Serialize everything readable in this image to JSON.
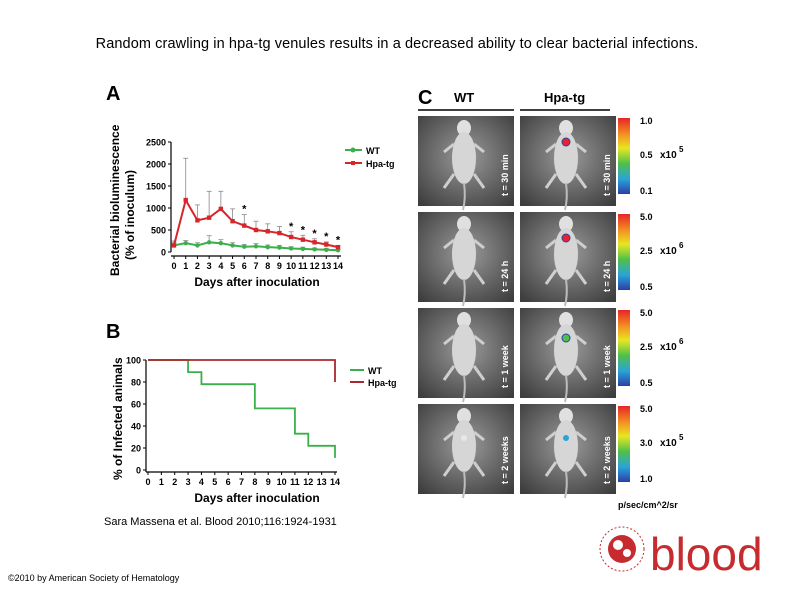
{
  "title": "Random crawling in hpa-tg venules results in a decreased ability to clear bacterial infections.",
  "citation": "Sara Massena et al. Blood 2010;116:1924-1931",
  "copyright": "©2010 by American Society of Hematology",
  "logo_text": "blood",
  "colors": {
    "wt": "#3bb04a",
    "hpa": "#d7262b",
    "hpa_dark": "#a8282b"
  },
  "panelA": {
    "label": "A",
    "ylabel_line1": "Bacterial bioluminescence",
    "ylabel_line2": "(% of inoculum)",
    "xlabel": "Days after inoculation",
    "legend": [
      "WT",
      "Hpa-tg"
    ],
    "yticks": [
      "2500",
      "2000",
      "1500",
      "1000",
      "500",
      "0"
    ],
    "xticks": [
      "0",
      "1",
      "2",
      "3",
      "4",
      "5",
      "6",
      "7",
      "8",
      "9",
      "10",
      "11",
      "12",
      "13",
      "14"
    ],
    "significance": "*"
  },
  "panelB": {
    "label": "B",
    "ylabel": "% of Infected animals",
    "xlabel": "Days after inoculation",
    "legend": [
      "WT",
      "Hpa-tg"
    ],
    "yticks": [
      "100",
      "80",
      "60",
      "40",
      "20",
      "0"
    ],
    "xticks": [
      "0",
      "1",
      "2",
      "3",
      "4",
      "5",
      "6",
      "7",
      "8",
      "9",
      "10",
      "11",
      "12",
      "13",
      "14"
    ]
  },
  "panelC": {
    "label": "C",
    "col_headers": [
      "WT",
      "Hpa-tg"
    ],
    "rows": [
      {
        "time": "t = 30 min",
        "scale_top": "1.0",
        "scale_mid": "0.5",
        "scale_bot": "0.1",
        "multiplier": "x10",
        "exp": "5"
      },
      {
        "time": "t = 24 h",
        "scale_top": "5.0",
        "scale_mid": "2.5",
        "scale_bot": "0.5",
        "multiplier": "x10",
        "exp": "6"
      },
      {
        "time": "t = 1 week",
        "scale_top": "5.0",
        "scale_mid": "2.5",
        "scale_bot": "0.5",
        "multiplier": "x10",
        "exp": "6"
      },
      {
        "time": "t = 2 weeks",
        "scale_top": "5.0",
        "scale_mid": "3.0",
        "scale_bot": "1.0",
        "multiplier": "x10",
        "exp": "5"
      }
    ],
    "units": "p/sec/cm^2/sr"
  },
  "chart_data": [
    {
      "type": "line",
      "ylabel": "Bacterial bioluminescence (% of inoculum)",
      "xlabel": "Days after inoculation",
      "x": [
        0,
        1,
        2,
        3,
        4,
        5,
        6,
        7,
        8,
        9,
        10,
        11,
        12,
        13,
        14
      ],
      "ylim": [
        0,
        2500
      ],
      "series": [
        {
          "name": "WT",
          "values": [
            150,
            200,
            150,
            220,
            200,
            150,
            120,
            130,
            110,
            100,
            80,
            70,
            60,
            50,
            40
          ],
          "error": [
            60,
            60,
            60,
            150,
            80,
            60,
            50,
            60,
            50,
            50,
            40,
            40,
            30,
            30,
            20
          ]
        },
        {
          "name": "Hpa-tg",
          "values": [
            150,
            1180,
            720,
            780,
            980,
            700,
            600,
            500,
            470,
            430,
            340,
            280,
            220,
            170,
            110
          ],
          "error": [
            100,
            950,
            350,
            600,
            400,
            280,
            250,
            200,
            170,
            150,
            120,
            100,
            80,
            60,
            40
          ]
        }
      ],
      "significant_days": [
        6,
        10,
        11,
        12,
        13,
        14
      ]
    },
    {
      "type": "line",
      "ylabel": "% of Infected animals",
      "xlabel": "Days after inoculation",
      "x": [
        0,
        1,
        2,
        3,
        4,
        5,
        6,
        7,
        8,
        9,
        10,
        11,
        12,
        13,
        14
      ],
      "ylim": [
        0,
        100
      ],
      "step": true,
      "series": [
        {
          "name": "WT",
          "points": [
            [
              0,
              100
            ],
            [
              3,
              100
            ],
            [
              3,
              89
            ],
            [
              4,
              89
            ],
            [
              4,
              78
            ],
            [
              8,
              78
            ],
            [
              8,
              56
            ],
            [
              11,
              56
            ],
            [
              11,
              33
            ],
            [
              12,
              33
            ],
            [
              12,
              22
            ],
            [
              14,
              22
            ],
            [
              14,
              11
            ]
          ]
        },
        {
          "name": "Hpa-tg",
          "points": [
            [
              0,
              100
            ],
            [
              14,
              100
            ],
            [
              14,
              80
            ]
          ]
        }
      ]
    }
  ]
}
